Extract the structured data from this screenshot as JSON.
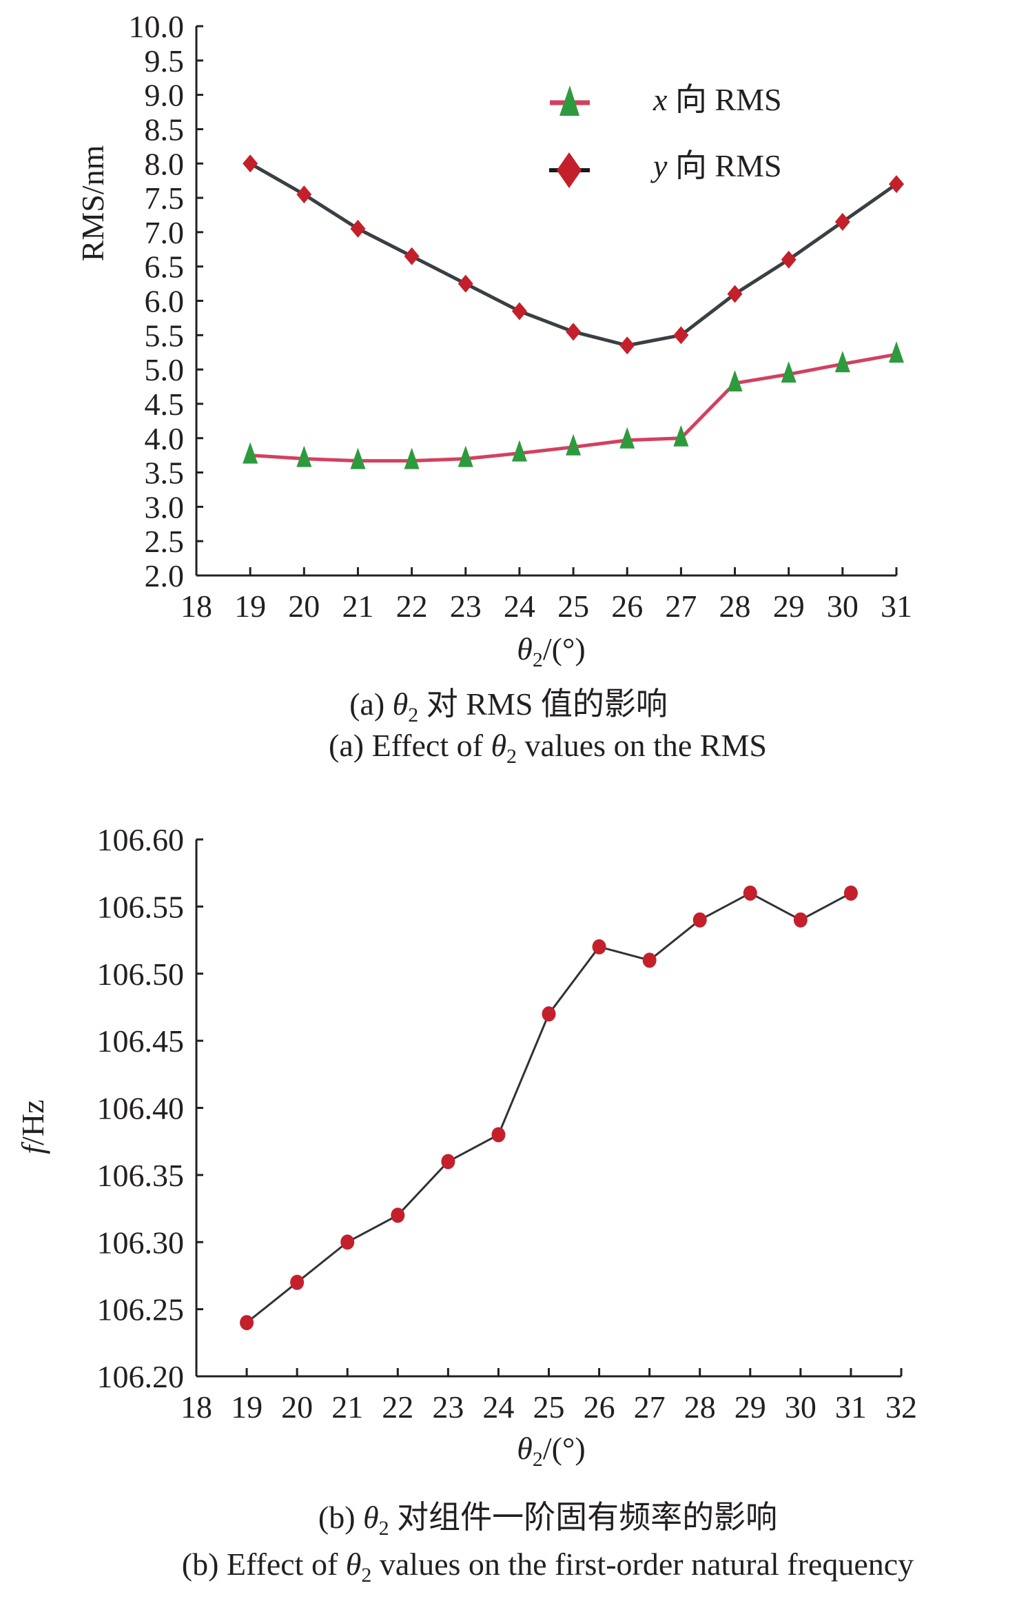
{
  "chart_data": [
    {
      "type": "line",
      "title": "",
      "xlabel": "θ2/(°)",
      "xlabel_parts": {
        "symbol": "θ",
        "subscript": "2",
        "unit": "/(°)"
      },
      "ylabel": "RMS/nm",
      "xlim": [
        18,
        31
      ],
      "ylim": [
        2.0,
        10.0
      ],
      "x_ticks": [
        "18",
        "19",
        "20",
        "21",
        "22",
        "23",
        "24",
        "25",
        "26",
        "27",
        "28",
        "29",
        "30",
        "31"
      ],
      "y_ticks": [
        "2.0",
        "2.5",
        "3.0",
        "3.5",
        "4.0",
        "4.5",
        "5.0",
        "5.5",
        "6.0",
        "6.5",
        "7.0",
        "7.5",
        "8.0",
        "8.5",
        "9.0",
        "9.5",
        "10.0"
      ],
      "grid": false,
      "legend_position": "top-right",
      "x": [
        19,
        20,
        21,
        22,
        23,
        24,
        25,
        26,
        27,
        28,
        29,
        30,
        31
      ],
      "series": [
        {
          "name": "x 向 RMS",
          "name_parts": {
            "var": "x",
            "rest": " 向 RMS"
          },
          "marker": "triangle",
          "line_color": "#d2415f",
          "marker_color": "#2e9a3e",
          "values": [
            3.75,
            3.7,
            3.67,
            3.67,
            3.7,
            3.78,
            3.87,
            3.97,
            4.0,
            4.8,
            4.93,
            5.08,
            5.22
          ]
        },
        {
          "name": "y 向 RMS",
          "name_parts": {
            "var": "y",
            "rest": " 向 RMS"
          },
          "marker": "diamond",
          "line_color": "#3a3f44",
          "marker_color": "#c4202b",
          "values": [
            8.0,
            7.55,
            7.05,
            6.65,
            6.25,
            5.85,
            5.55,
            5.35,
            5.5,
            6.1,
            6.6,
            7.15,
            7.7
          ]
        }
      ],
      "caption_cn": {
        "prefix": "(a) ",
        "symbol": "θ",
        "subscript": "2",
        "rest": " 对 RMS 值的影响"
      },
      "caption_en": {
        "prefix": "(a) Effect of ",
        "symbol": "θ",
        "subscript": "2",
        "rest": " values on the RMS"
      }
    },
    {
      "type": "line",
      "title": "",
      "xlabel": "θ2/(°)",
      "xlabel_parts": {
        "symbol": "θ",
        "subscript": "2",
        "unit": "/(°)"
      },
      "ylabel": "f/Hz",
      "ylabel_parts": {
        "var": "f",
        "rest": "/Hz"
      },
      "xlim": [
        18,
        32
      ],
      "ylim": [
        106.2,
        106.6
      ],
      "x_ticks": [
        "18",
        "19",
        "20",
        "21",
        "22",
        "23",
        "24",
        "25",
        "26",
        "27",
        "28",
        "29",
        "30",
        "31",
        "32"
      ],
      "y_ticks": [
        "106.20",
        "106.25",
        "106.30",
        "106.35",
        "106.40",
        "106.45",
        "106.50",
        "106.55",
        "106.60"
      ],
      "grid": false,
      "x": [
        19,
        20,
        21,
        22,
        23,
        24,
        25,
        26,
        27,
        28,
        29,
        30,
        31
      ],
      "series": [
        {
          "name": "first-order natural frequency",
          "marker": "circle",
          "line_color": "#2f3236",
          "marker_color": "#c4202b",
          "values": [
            106.24,
            106.27,
            106.3,
            106.32,
            106.36,
            106.38,
            106.47,
            106.52,
            106.51,
            106.54,
            106.56,
            106.54,
            106.56
          ]
        }
      ],
      "caption_cn": {
        "prefix": "(b) ",
        "symbol": "θ",
        "subscript": "2",
        "rest": " 对组件一阶固有频率的影响"
      },
      "caption_en": {
        "prefix": "(b) Effect of ",
        "symbol": "θ",
        "subscript": "2",
        "rest": " values on the first-order natural frequency"
      }
    }
  ]
}
